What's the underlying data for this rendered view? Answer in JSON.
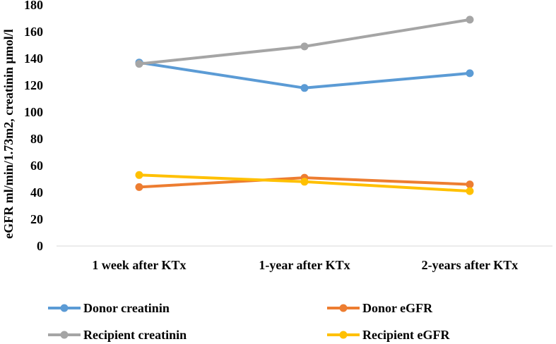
{
  "chart_data": {
    "type": "line",
    "title": "",
    "xlabel": "",
    "ylabel": "eGFR ml/min/1.73m2, creatinin µmol/l",
    "ylim": [
      0,
      180
    ],
    "yticks": [
      0,
      20,
      40,
      60,
      80,
      100,
      120,
      140,
      160,
      180
    ],
    "grid": false,
    "legend_position": "bottom",
    "categories": [
      "1 week after KTx",
      "1-year after KTx",
      "2-years after KTx"
    ],
    "series": [
      {
        "name": "Donor creatinin",
        "color": "#5B9BD5",
        "values": [
          137,
          118,
          129
        ]
      },
      {
        "name": "Donor eGFR",
        "color": "#ED7D31",
        "values": [
          44,
          51,
          46
        ]
      },
      {
        "name": "Recipient creatinin",
        "color": "#A5A5A5",
        "values": [
          136,
          149,
          169
        ]
      },
      {
        "name": "Recipient eGFR",
        "color": "#FFC000",
        "values": [
          53,
          48,
          41
        ]
      }
    ]
  }
}
